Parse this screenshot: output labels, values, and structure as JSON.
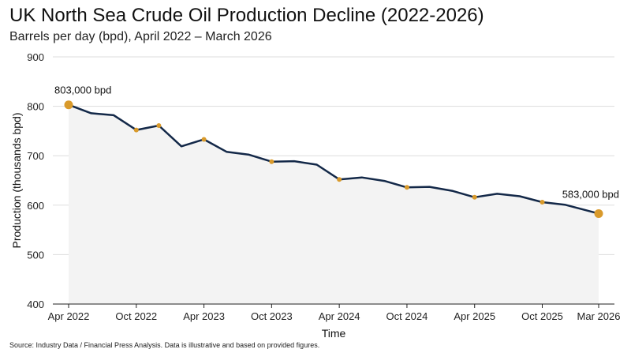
{
  "header": {
    "title": "UK North Sea Crude Oil Production Decline (2022-2026)",
    "subtitle": "Barrels per day (bpd), April 2022 – March 2026"
  },
  "footer": {
    "source": "Source: Industry Data / Financial Press Analysis. Data is illustrative and based on provided figures."
  },
  "colors": {
    "line": "#132848",
    "marker": "#d99a2b",
    "fill": "#f3f3f3",
    "grid": "#dddddd"
  },
  "chart_data": {
    "type": "line",
    "title": "UK North Sea Crude Oil Production Decline (2022-2026)",
    "subtitle": "Barrels per day (bpd), April 2022 – March 2026",
    "xlabel": "Time",
    "ylabel": "Production (thousands bpd)",
    "ylim": [
      400,
      900
    ],
    "yticks": [
      400,
      500,
      600,
      700,
      800,
      900
    ],
    "grid": "horizontal",
    "area_fill": true,
    "x_range": [
      "2022-04",
      "2026-03"
    ],
    "xticks": [
      {
        "label": "Apr 2022",
        "date": "2022-04"
      },
      {
        "label": "Oct 2022",
        "date": "2022-10"
      },
      {
        "label": "Apr 2023",
        "date": "2023-04"
      },
      {
        "label": "Oct 2023",
        "date": "2023-10"
      },
      {
        "label": "Apr 2024",
        "date": "2024-04"
      },
      {
        "label": "Oct 2024",
        "date": "2024-10"
      },
      {
        "label": "Apr 2025",
        "date": "2025-04"
      },
      {
        "label": "Oct 2025",
        "date": "2025-10"
      },
      {
        "label": "Mar 2026",
        "date": "2026-03"
      }
    ],
    "series": [
      {
        "points": [
          {
            "date": "2022-04",
            "value": 803,
            "marker": "large"
          },
          {
            "date": "2022-06",
            "value": 786
          },
          {
            "date": "2022-08",
            "value": 782
          },
          {
            "date": "2022-10",
            "value": 752,
            "marker": "small"
          },
          {
            "date": "2022-12",
            "value": 761,
            "marker": "small"
          },
          {
            "date": "2023-02",
            "value": 719
          },
          {
            "date": "2023-04",
            "value": 733,
            "marker": "small"
          },
          {
            "date": "2023-06",
            "value": 708
          },
          {
            "date": "2023-08",
            "value": 702
          },
          {
            "date": "2023-10",
            "value": 688,
            "marker": "small"
          },
          {
            "date": "2023-12",
            "value": 689
          },
          {
            "date": "2024-02",
            "value": 682
          },
          {
            "date": "2024-04",
            "value": 652,
            "marker": "small"
          },
          {
            "date": "2024-06",
            "value": 656
          },
          {
            "date": "2024-08",
            "value": 649
          },
          {
            "date": "2024-10",
            "value": 636,
            "marker": "small"
          },
          {
            "date": "2024-12",
            "value": 637
          },
          {
            "date": "2025-02",
            "value": 629
          },
          {
            "date": "2025-04",
            "value": 616,
            "marker": "small"
          },
          {
            "date": "2025-06",
            "value": 623
          },
          {
            "date": "2025-08",
            "value": 618
          },
          {
            "date": "2025-10",
            "value": 606,
            "marker": "small"
          },
          {
            "date": "2025-12",
            "value": 601
          },
          {
            "date": "2026-03",
            "value": 583,
            "marker": "large"
          }
        ]
      }
    ],
    "annotations": [
      {
        "text": "803,000 bpd",
        "date": "2022-04",
        "value": 803,
        "position": "above"
      },
      {
        "text": "583,000 bpd",
        "date": "2026-03",
        "value": 583,
        "position": "above-left"
      }
    ]
  }
}
